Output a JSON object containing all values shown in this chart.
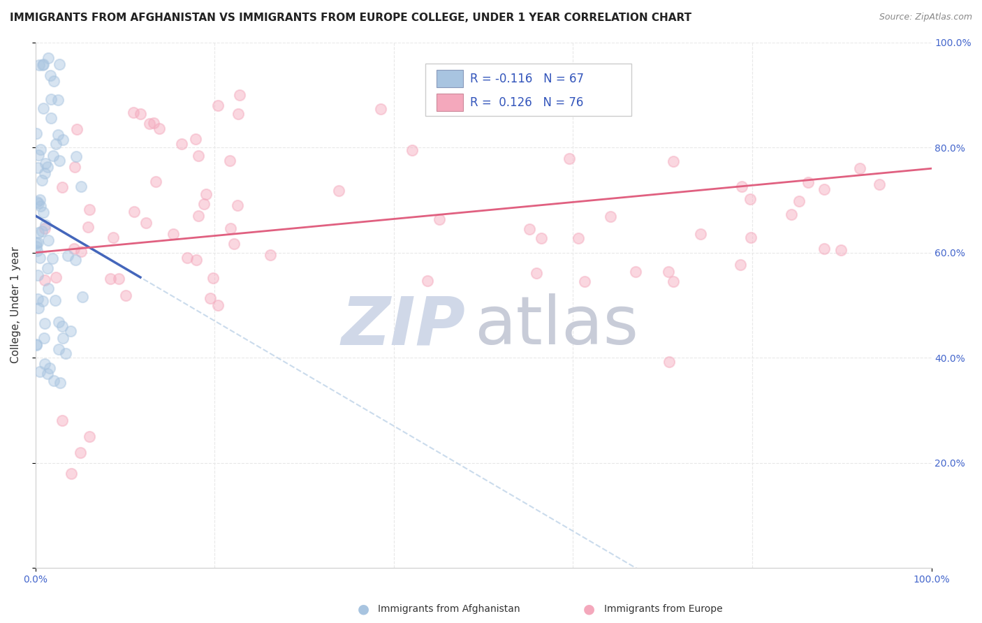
{
  "title": "IMMIGRANTS FROM AFGHANISTAN VS IMMIGRANTS FROM EUROPE COLLEGE, UNDER 1 YEAR CORRELATION CHART",
  "source": "Source: ZipAtlas.com",
  "ylabel": "College, Under 1 year",
  "xlim": [
    0.0,
    1.0
  ],
  "ylim": [
    0.0,
    1.0
  ],
  "xtick_positions": [
    0.0,
    1.0
  ],
  "xtick_labels": [
    "0.0%",
    "100.0%"
  ],
  "ytick_positions": [
    0.0,
    0.2,
    0.4,
    0.6,
    0.8,
    1.0
  ],
  "ytick_labels": [
    "",
    "20.0%",
    "40.0%",
    "60.0%",
    "80.0%",
    "100.0%"
  ],
  "ytick_labels_right": [
    "",
    "20.0%",
    "40.0%",
    "60.0%",
    "80.0%",
    "100.0%"
  ],
  "afghanistan_color": "#a8c4e0",
  "europe_color": "#f4a8bc",
  "afghanistan_line_color": "#4466bb",
  "europe_line_color": "#e06080",
  "afghanistan_dashed_color": "#a8c4e0",
  "R_afghanistan": -0.116,
  "N_afghanistan": 67,
  "R_europe": 0.126,
  "N_europe": 76,
  "background_color": "#ffffff",
  "grid_color": "#e8e8e8",
  "watermark_zip_color": "#d0d8e8",
  "watermark_atlas_color": "#c8ccd8",
  "title_fontsize": 11,
  "tick_fontsize": 10,
  "tick_color": "#4466cc",
  "scatter_size": 120,
  "scatter_alpha": 0.45,
  "scatter_linewidth": 1.5
}
